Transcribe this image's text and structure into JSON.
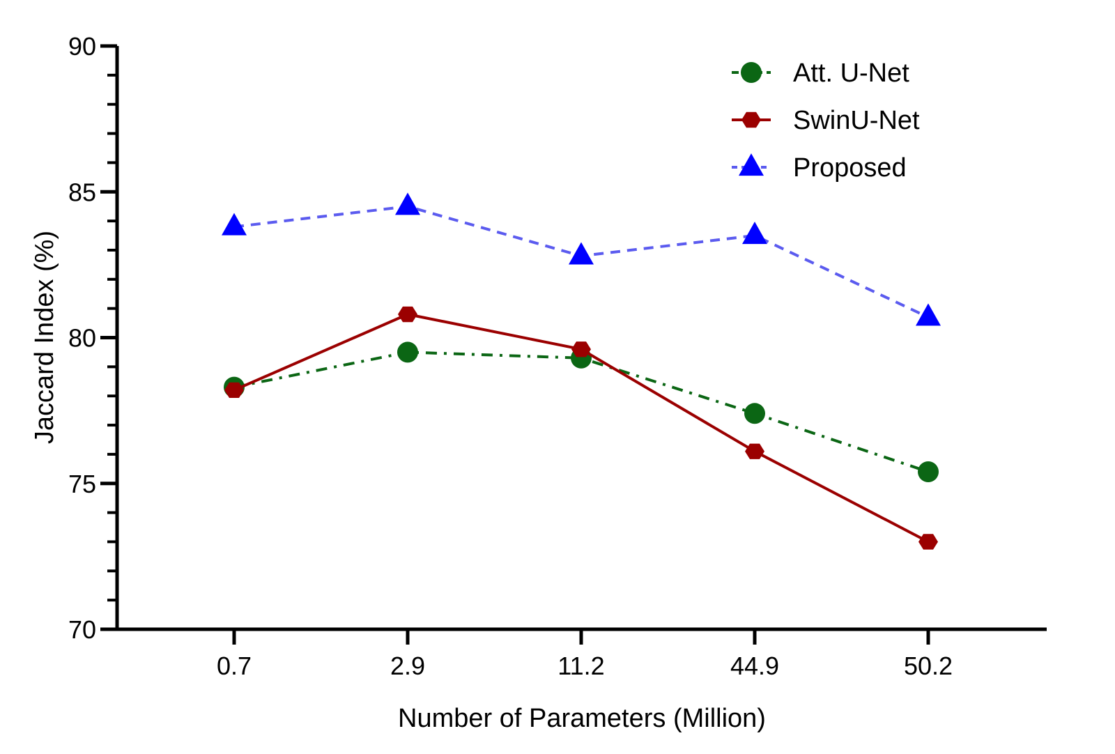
{
  "chart_data": {
    "type": "line",
    "title": "",
    "xlabel": "Number of Parameters (Million)",
    "ylabel": "Jaccard Index (%)",
    "categories": [
      "0.7",
      "2.9",
      "11.2",
      "44.9",
      "50.2"
    ],
    "ylim": [
      70,
      90
    ],
    "yticks": [
      70,
      75,
      80,
      85,
      90
    ],
    "grid": false,
    "legend_position": "top-right",
    "series": [
      {
        "name": "Att. U-Net",
        "values": [
          78.3,
          79.5,
          79.3,
          77.4,
          75.4
        ],
        "color": "#0b6614",
        "marker": "circle",
        "line": "dash-dot"
      },
      {
        "name": "SwinU-Net",
        "values": [
          78.2,
          80.8,
          79.6,
          76.1,
          73.0
        ],
        "color": "#9b0000",
        "marker": "hexagon",
        "line": "solid"
      },
      {
        "name": "Proposed",
        "values": [
          83.8,
          84.5,
          82.8,
          83.5,
          80.7
        ],
        "color": "#0000ff",
        "line_color": "#5b5bef",
        "marker": "triangle",
        "line": "dashed"
      }
    ]
  }
}
